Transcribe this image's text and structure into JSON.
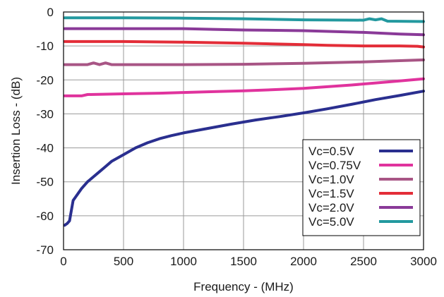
{
  "chart_data": {
    "type": "line",
    "xlabel": "Frequency - (MHz)",
    "ylabel": "Insertion Loss - (dB)",
    "xlim": [
      0,
      3000
    ],
    "ylim": [
      -70,
      0
    ],
    "x_ticks": [
      0,
      500,
      1000,
      1500,
      2000,
      2500,
      3000
    ],
    "y_ticks": [
      0,
      -10,
      -20,
      -30,
      -40,
      -50,
      -60,
      -70
    ],
    "x_tick_labels": [
      "0",
      "500",
      "1000",
      "1500",
      "2000",
      "2500",
      "3000"
    ],
    "y_tick_labels": [
      "0",
      "-10",
      "-20",
      "-30",
      "-40",
      "-50",
      "-60",
      "-70"
    ],
    "grid": true,
    "legend_position": "lower-right",
    "series": [
      {
        "name": "Vc=0.5V",
        "color": "#2a2f8f",
        "x": [
          10,
          30,
          50,
          60,
          80,
          100,
          150,
          200,
          250,
          300,
          350,
          400,
          450,
          500,
          600,
          700,
          800,
          900,
          1000,
          1200,
          1400,
          1600,
          1800,
          2000,
          2200,
          2400,
          2600,
          2800,
          3000
        ],
        "y": [
          -62.8,
          -62.3,
          -61.5,
          -59.5,
          -55.5,
          -54.5,
          -52,
          -50,
          -48.5,
          -47,
          -45.5,
          -44,
          -43,
          -42,
          -40,
          -38.5,
          -37.3,
          -36.4,
          -35.6,
          -34.3,
          -33,
          -31.8,
          -30.8,
          -29.7,
          -28.5,
          -27.2,
          -25.8,
          -24.6,
          -23.3
        ]
      },
      {
        "name": "Vc=0.75V",
        "color": "#e0339d",
        "x": [
          10,
          150,
          200,
          500,
          800,
          1000,
          1200,
          1500,
          1800,
          2000,
          2200,
          2400,
          2600,
          2800,
          3000
        ],
        "y": [
          -24.7,
          -24.7,
          -24.3,
          -24.1,
          -23.9,
          -23.7,
          -23.5,
          -23.2,
          -22.8,
          -22.5,
          -22.0,
          -21.5,
          -20.9,
          -20.3,
          -19.7
        ]
      },
      {
        "name": "Vc=1.0V",
        "color": "#a85585",
        "x": [
          10,
          200,
          250,
          300,
          350,
          400,
          500,
          1000,
          1500,
          2000,
          2500,
          3000
        ],
        "y": [
          -15.5,
          -15.5,
          -15.0,
          -15.5,
          -15.0,
          -15.5,
          -15.5,
          -15.5,
          -15.4,
          -15.1,
          -14.7,
          -14.1
        ]
      },
      {
        "name": "Vc=1.5V",
        "color": "#e32d38",
        "x": [
          10,
          500,
          1000,
          1500,
          2000,
          2200,
          2500,
          2800,
          2950,
          3000
        ],
        "y": [
          -8.7,
          -8.7,
          -8.9,
          -9.2,
          -9.6,
          -9.8,
          -10.0,
          -10.0,
          -10.1,
          -10.3
        ]
      },
      {
        "name": "Vc=2.0V",
        "color": "#8a3a98",
        "x": [
          10,
          500,
          1000,
          1250,
          1500,
          2000,
          2500,
          2800,
          3000
        ],
        "y": [
          -4.9,
          -4.9,
          -4.9,
          -5.1,
          -5.3,
          -5.5,
          -6.0,
          -6.5,
          -6.7
        ]
      },
      {
        "name": "Vc=5.0V",
        "color": "#23999f",
        "x": [
          10,
          500,
          1000,
          1500,
          2000,
          2500,
          2550,
          2600,
          2650,
          2700,
          3000
        ],
        "y": [
          -1.7,
          -1.7,
          -1.8,
          -2.0,
          -2.3,
          -2.4,
          -2.0,
          -2.3,
          -2.0,
          -2.7,
          -2.8
        ]
      }
    ]
  }
}
